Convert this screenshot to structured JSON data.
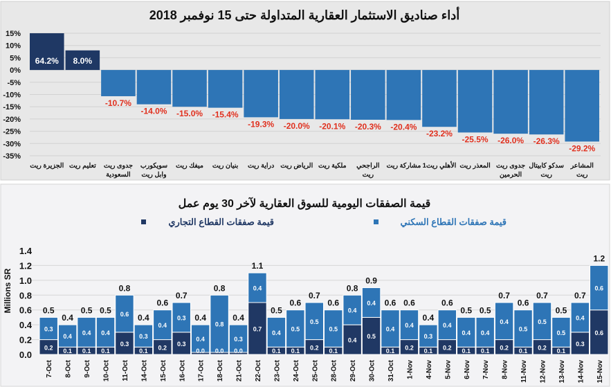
{
  "colors": {
    "positive": "#1f3864",
    "negative": "#2e75b6",
    "negative_label": "#e0301e",
    "residential": "#2e75b6",
    "commercial": "#203864"
  },
  "chart_data": [
    {
      "type": "bar",
      "title": "أداء صناديق الاستثمار العقارية المتداولة حتى 15 نوفمبر 2018",
      "categories": [
        "الجزيرة ريت",
        "تعليم ريت",
        "جدوى ريت السعودية",
        "سويكورب وابل ريت",
        "ميفك ريت",
        "بنيان ريت",
        "دراية ريت",
        "الرياض ريت",
        "ملكية ريت",
        "الراجحي ريت",
        "مشاركة ريت",
        "الأهلي ريت1",
        "المعذر ريت",
        "جدوى ريت الحرمين",
        "سدكو كابيتال ريت",
        "المشاعر ريت"
      ],
      "values": [
        64.2,
        8.0,
        -10.7,
        -14.0,
        -15.0,
        -15.4,
        -19.3,
        -20.0,
        -20.1,
        -20.3,
        -20.4,
        -23.2,
        -25.5,
        -26.0,
        -26.3,
        -29.2
      ],
      "data_labels": [
        "64.2%",
        "8.0%",
        "-10.7%",
        "-14.0%",
        "-15.0%",
        "-15.4%",
        "-19.3%",
        "-20.0%",
        "-20.1%",
        "-20.3%",
        "-20.4%",
        "-23.2%",
        "-25.5%",
        "-26.0%",
        "-26.3%",
        "-29.2%"
      ],
      "ylim": [
        -35,
        15
      ],
      "yticks": [
        "15%",
        "10%",
        "5%",
        "0%",
        "-5%",
        "-10%",
        "-15%",
        "-20%",
        "-25%",
        "-30%",
        "-35%"
      ],
      "grid": true
    },
    {
      "type": "bar",
      "stacked": true,
      "title": "قيمة الصفقات اليومية للسوق العقارية لآخر 30 يوم عمل",
      "ylabel": "Millions SR",
      "ylim": [
        0,
        1.4
      ],
      "yticks": [
        "1.4",
        "1.2",
        "1.0",
        "0.8",
        "0.6",
        "0.4",
        "0.2",
        "0.0"
      ],
      "legend": "top",
      "grid": true,
      "categories": [
        "7-Oct",
        "8-Oct",
        "9-Oct",
        "10-Oct",
        "11-Oct",
        "14-Oct",
        "15-Oct",
        "16-Oct",
        "17-Oct",
        "18-Oct",
        "21-Oct",
        "22-Oct",
        "23-Oct",
        "24-Oct",
        "25-Oct",
        "28-Oct",
        "29-Oct",
        "30-Oct",
        "31-Oct",
        "1-Nov",
        "4-Nov",
        "5-Nov",
        "6-Nov",
        "7-Nov",
        "8-Nov",
        "11-Nov",
        "12-Nov",
        "13-Nov",
        "14-Nov",
        "15-Nov"
      ],
      "series": [
        {
          "name": "قيمة صفقات القطاع التجاري",
          "values": [
            0.2,
            0.1,
            0.1,
            0.1,
            0.3,
            0.1,
            0.2,
            0.3,
            0.0,
            0.0,
            0.0,
            0.7,
            0.1,
            0.1,
            0.2,
            0.1,
            0.4,
            0.5,
            0.1,
            0.2,
            0.1,
            0.2,
            0.1,
            0.1,
            0.2,
            0.1,
            0.2,
            0.1,
            0.3,
            0.6
          ]
        },
        {
          "name": "قيمة صفقات القطاع السكني",
          "values": [
            0.3,
            0.4,
            0.4,
            0.4,
            0.6,
            0.3,
            0.4,
            0.3,
            0.4,
            0.8,
            0.3,
            0.4,
            0.4,
            0.5,
            0.5,
            0.5,
            0.4,
            0.4,
            0.4,
            0.4,
            0.3,
            0.4,
            0.4,
            0.4,
            0.4,
            0.5,
            0.5,
            0.5,
            0.4,
            0.6
          ]
        }
      ],
      "totals": [
        0.5,
        0.4,
        0.5,
        0.5,
        0.8,
        0.4,
        0.6,
        0.7,
        0.4,
        0.8,
        0.4,
        1.1,
        0.5,
        0.6,
        0.7,
        0.6,
        0.8,
        0.9,
        0.6,
        0.6,
        0.4,
        0.6,
        0.5,
        0.5,
        0.7,
        0.6,
        0.7,
        0.5,
        0.7,
        1.2
      ]
    }
  ]
}
